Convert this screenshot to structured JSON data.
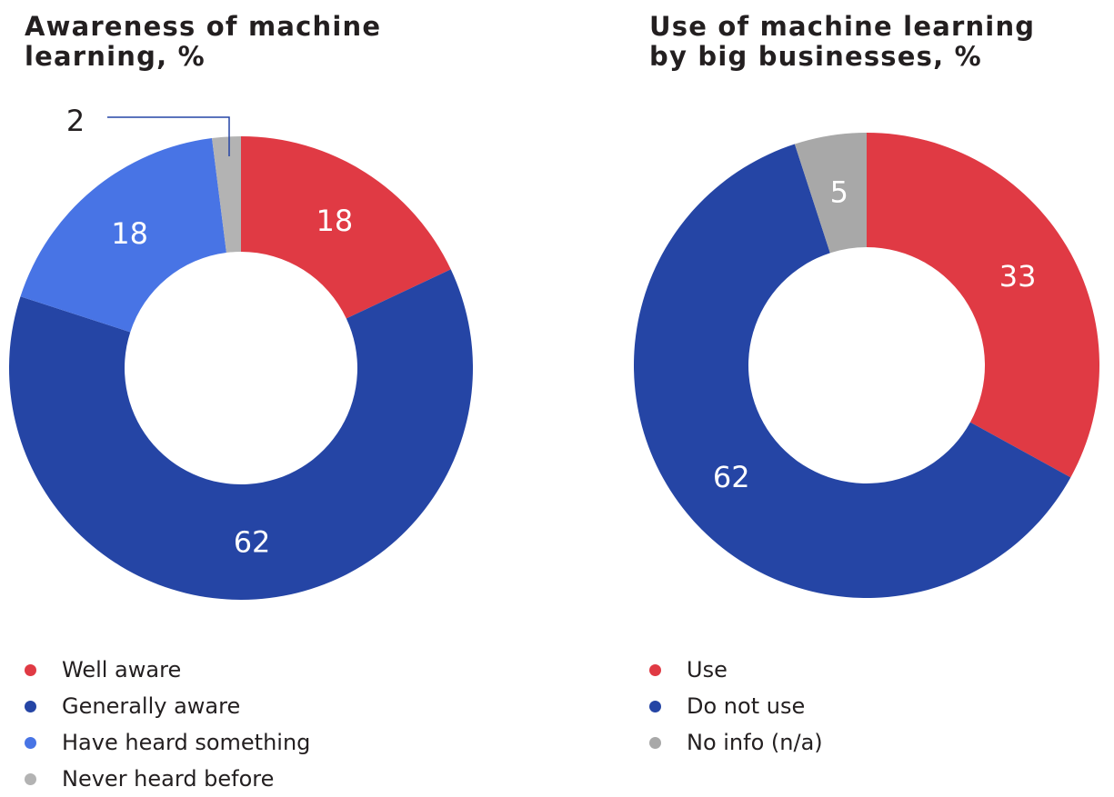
{
  "chart_data": [
    {
      "type": "pie",
      "style": "donut",
      "title": "Awareness of machine learning, %",
      "categories": [
        "Well aware",
        "Generally aware",
        "Have heard something",
        "Never heard before"
      ],
      "values": [
        18,
        62,
        18,
        2
      ],
      "colors": [
        "#e03a44",
        "#2545a5",
        "#4874e5",
        "#b3b3b3"
      ],
      "slice_labels": [
        "18",
        "62",
        "18",
        "2"
      ],
      "legend_position": "bottom"
    },
    {
      "type": "pie",
      "style": "donut",
      "title": "Use of machine learning by big businesses, %",
      "categories": [
        "Use",
        "Do not use",
        "No info (n/a)"
      ],
      "values": [
        33,
        62,
        5
      ],
      "colors": [
        "#e03a44",
        "#2545a5",
        "#a8a8a8"
      ],
      "slice_labels": [
        "33",
        "62",
        "5"
      ],
      "legend_position": "bottom"
    }
  ]
}
